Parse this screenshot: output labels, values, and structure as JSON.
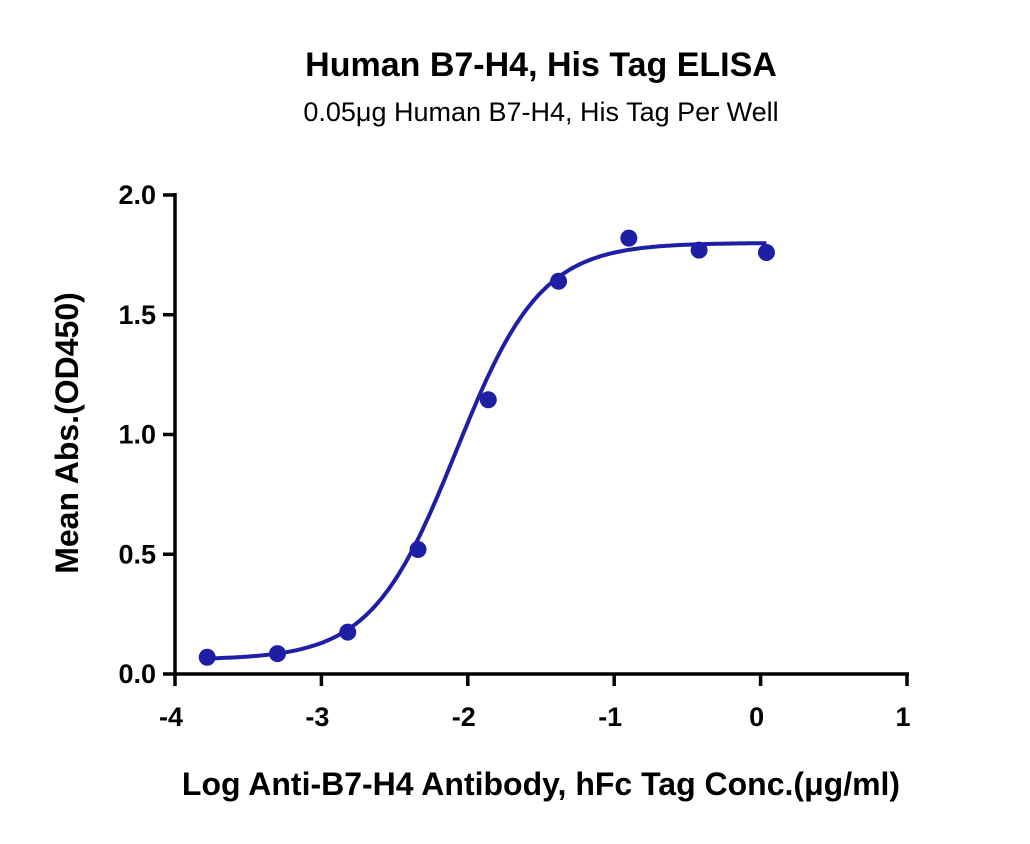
{
  "chart_data": {
    "type": "scatter",
    "title": "Human B7-H4, His Tag ELISA",
    "subtitle": "0.05μg Human B7-H4, His Tag Per Well",
    "xlabel": "Log Anti-B7-H4 Antibody, hFc Tag Conc.(μg/ml)",
    "ylabel": "Mean Abs.(OD450)",
    "xlim": [
      -4,
      1
    ],
    "ylim": [
      0,
      2
    ],
    "xticks": [
      -4,
      -3,
      -2,
      -1,
      0,
      1
    ],
    "xtick_labels": [
      "-4",
      "-3",
      "-2",
      "-1",
      "0",
      "1"
    ],
    "yticks": [
      0,
      0.5,
      1,
      1.5,
      2
    ],
    "ytick_labels": [
      "0.0",
      "0.5",
      "1.0",
      "1.5",
      "2.0"
    ],
    "grid": false,
    "series": [
      {
        "x": [
          -3.78,
          -3.3,
          -2.82,
          -2.34,
          -1.86,
          -1.38,
          -0.9,
          -0.42,
          0.04
        ],
        "y": [
          0.07,
          0.085,
          0.175,
          0.52,
          1.145,
          1.64,
          1.82,
          1.77,
          1.76
        ],
        "color": "#1f1fa6",
        "fit": {
          "model": "4PL",
          "bottom": 0.06,
          "top": 1.8,
          "logEC50": -2.08,
          "hill": 1.5
        }
      }
    ]
  }
}
